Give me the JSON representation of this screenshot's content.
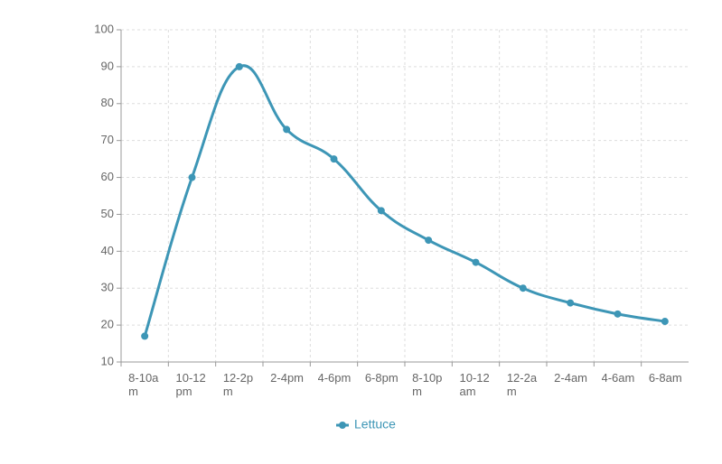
{
  "chart_data": {
    "type": "line",
    "categories": [
      "8-10am",
      "10-12pm",
      "12-2pm",
      "2-4pm",
      "4-6pm",
      "6-8pm",
      "8-10pm",
      "10-12am",
      "12-2am",
      "2-4am",
      "4-6am",
      "6-8am"
    ],
    "series": [
      {
        "name": "Lettuce",
        "color": "#3d96b6",
        "values": [
          17,
          60,
          90,
          73,
          65,
          51,
          43,
          37,
          30,
          26,
          23,
          21
        ]
      }
    ],
    "ylim": [
      10,
      100
    ],
    "yticks": [
      10,
      20,
      30,
      40,
      50,
      60,
      70,
      80,
      90,
      100
    ],
    "grid": true,
    "legend": "bottom"
  }
}
